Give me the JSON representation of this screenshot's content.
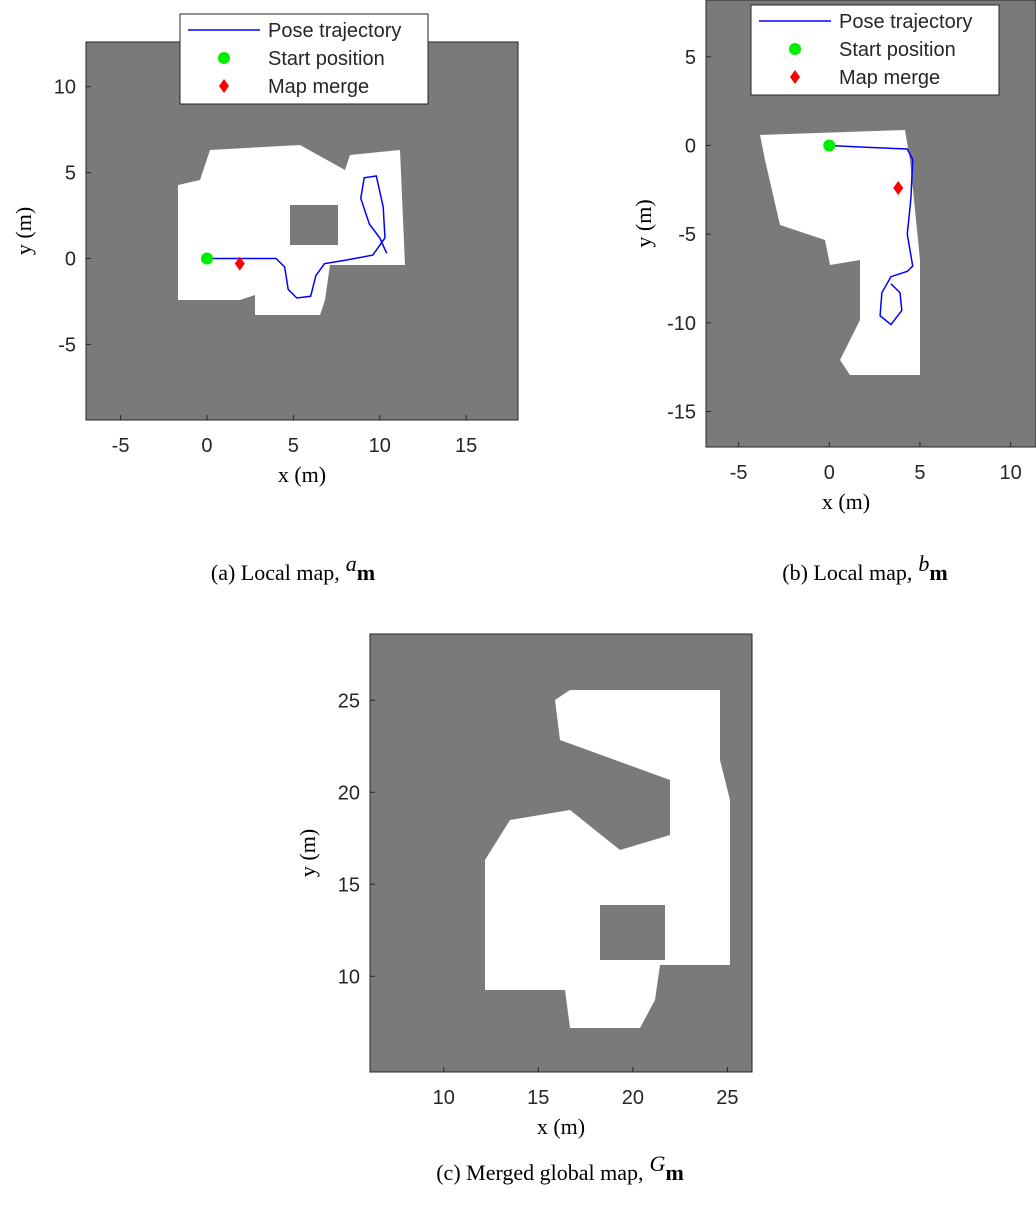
{
  "chart_data": [
    {
      "type": "line",
      "xlabel": "x (m)",
      "ylabel": "y (m)",
      "xlim": [
        -7,
        18
      ],
      "ylim": [
        -9.4,
        12.6
      ],
      "xticks": [
        -5,
        0,
        5,
        10,
        15
      ],
      "yticks": [
        -5,
        0,
        5,
        10
      ],
      "caption": "(a) Local map,",
      "caption_superscript": "a",
      "caption_symbol": "m",
      "series": [
        {
          "name": "Pose trajectory",
          "color": "#0000ff",
          "marker": "line",
          "x": [
            0,
            2,
            4,
            4.5,
            4.7,
            5.2,
            6,
            6.3,
            6.8,
            8,
            9.6,
            10.3,
            10.2,
            9.8,
            9.1,
            8.9,
            9.4,
            10,
            10.4
          ],
          "y": [
            0,
            0,
            0,
            -0.5,
            -1.8,
            -2.3,
            -2.2,
            -1,
            -0.3,
            -0.1,
            0.2,
            1.2,
            3,
            4.8,
            4.7,
            3.5,
            2,
            1.2,
            0.3
          ]
        },
        {
          "name": "Start position",
          "color": "#00ee00",
          "marker": "circle",
          "x": [
            0
          ],
          "y": [
            0
          ]
        },
        {
          "name": "Map merge",
          "color": "#ff0000",
          "marker": "diamond",
          "x": [
            1.9
          ],
          "y": [
            -0.3
          ]
        }
      ]
    },
    {
      "type": "line",
      "xlabel": "x (m)",
      "ylabel": "y (m)",
      "xlim": [
        -6.8,
        11.4
      ],
      "ylim": [
        -17,
        8.2
      ],
      "xticks": [
        -5,
        0,
        5,
        10
      ],
      "yticks": [
        -15,
        -10,
        -5,
        0,
        5
      ],
      "caption": "(b) Local map,",
      "caption_superscript": "b",
      "caption_symbol": "m",
      "series": [
        {
          "name": "Pose trajectory",
          "color": "#0000ff",
          "marker": "line",
          "x": [
            0,
            2,
            4.3,
            4.6,
            4.5,
            4.3,
            4.6,
            4.3,
            3.4,
            2.9,
            2.8,
            3.4,
            4,
            3.9,
            3.4
          ],
          "y": [
            0,
            -0.1,
            -0.2,
            -0.8,
            -3,
            -5,
            -6.8,
            -7.1,
            -7.4,
            -8.3,
            -9.6,
            -10.1,
            -9.3,
            -8.3,
            -7.8
          ]
        },
        {
          "name": "Start position",
          "color": "#00ee00",
          "marker": "circle",
          "x": [
            0
          ],
          "y": [
            0
          ]
        },
        {
          "name": "Map merge",
          "color": "#ff0000",
          "marker": "diamond",
          "x": [
            3.8
          ],
          "y": [
            -2.4
          ]
        }
      ]
    },
    {
      "type": "map",
      "xlabel": "x (m)",
      "ylabel": "y (m)",
      "xlim": [
        6.1,
        26.3
      ],
      "ylim": [
        4.8,
        28.6
      ],
      "xticks": [
        10,
        15,
        20,
        25
      ],
      "yticks": [
        10,
        15,
        20,
        25
      ],
      "caption": "(c) Merged global map,",
      "caption_superscript": "G",
      "caption_symbol": "m"
    }
  ]
}
